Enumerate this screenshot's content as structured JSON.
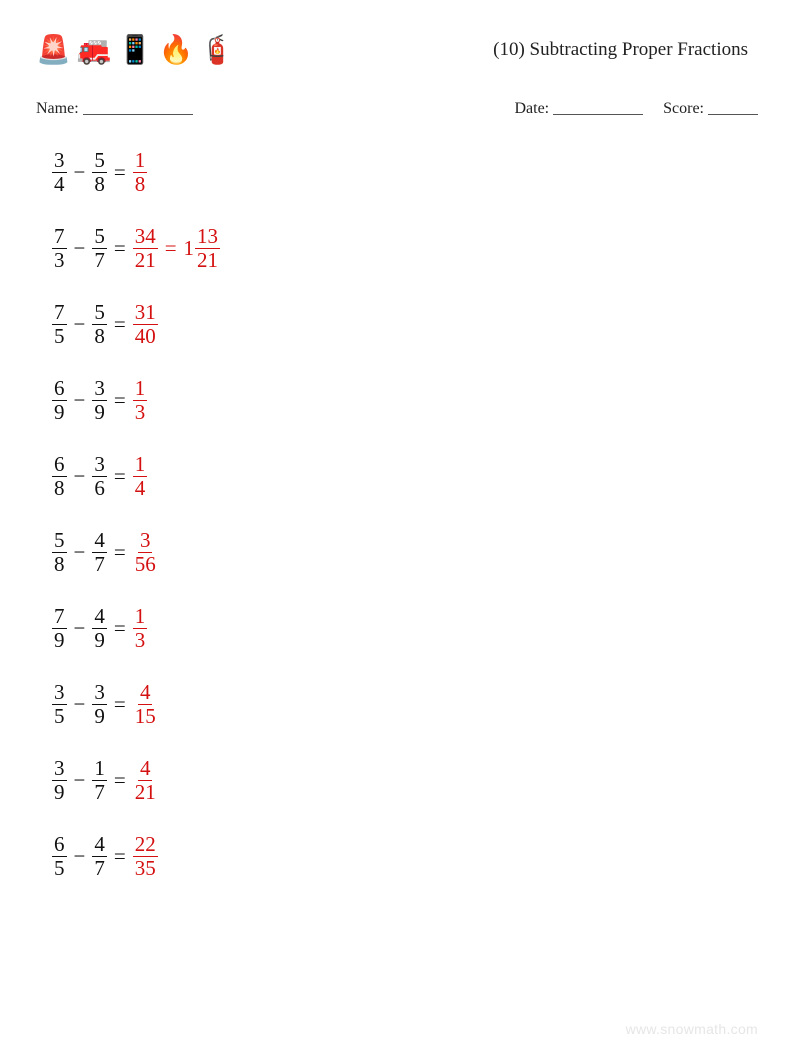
{
  "header": {
    "title": "(10) Subtracting Proper Fractions",
    "icons": [
      "🚨",
      "🚒",
      "📱",
      "🔥",
      "🧯"
    ]
  },
  "infoRow": {
    "nameLabel": "Name:",
    "dateLabel": "Date:",
    "scoreLabel": "Score:",
    "nameBlankWidth": 110,
    "dateBlankWidth": 90,
    "scoreBlankWidth": 50
  },
  "style": {
    "textColor": "#111111",
    "answerColor": "#d41010",
    "background": "#ffffff",
    "fontSize": 21,
    "titleFontSize": 19,
    "watermarkColor": "#e6e6e6"
  },
  "problems": [
    {
      "a": {
        "n": 3,
        "d": 4
      },
      "b": {
        "n": 5,
        "d": 8
      },
      "ans": [
        {
          "n": 1,
          "d": 8
        }
      ]
    },
    {
      "a": {
        "n": 7,
        "d": 3
      },
      "b": {
        "n": 5,
        "d": 7
      },
      "ans": [
        {
          "n": 34,
          "d": 21
        },
        {
          "whole": 1,
          "n": 13,
          "d": 21
        }
      ]
    },
    {
      "a": {
        "n": 7,
        "d": 5
      },
      "b": {
        "n": 5,
        "d": 8
      },
      "ans": [
        {
          "n": 31,
          "d": 40
        }
      ]
    },
    {
      "a": {
        "n": 6,
        "d": 9
      },
      "b": {
        "n": 3,
        "d": 9
      },
      "ans": [
        {
          "n": 1,
          "d": 3
        }
      ]
    },
    {
      "a": {
        "n": 6,
        "d": 8
      },
      "b": {
        "n": 3,
        "d": 6
      },
      "ans": [
        {
          "n": 1,
          "d": 4
        }
      ]
    },
    {
      "a": {
        "n": 5,
        "d": 8
      },
      "b": {
        "n": 4,
        "d": 7
      },
      "ans": [
        {
          "n": 3,
          "d": 56
        }
      ]
    },
    {
      "a": {
        "n": 7,
        "d": 9
      },
      "b": {
        "n": 4,
        "d": 9
      },
      "ans": [
        {
          "n": 1,
          "d": 3
        }
      ]
    },
    {
      "a": {
        "n": 3,
        "d": 5
      },
      "b": {
        "n": 3,
        "d": 9
      },
      "ans": [
        {
          "n": 4,
          "d": 15
        }
      ]
    },
    {
      "a": {
        "n": 3,
        "d": 9
      },
      "b": {
        "n": 1,
        "d": 7
      },
      "ans": [
        {
          "n": 4,
          "d": 21
        }
      ]
    },
    {
      "a": {
        "n": 6,
        "d": 5
      },
      "b": {
        "n": 4,
        "d": 7
      },
      "ans": [
        {
          "n": 22,
          "d": 35
        }
      ]
    }
  ],
  "operators": {
    "minus": "−",
    "equals": "="
  },
  "watermark": "www.snowmath.com"
}
